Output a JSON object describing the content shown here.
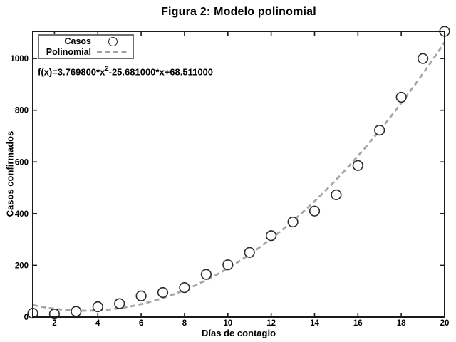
{
  "title": "Figura 2: Modelo polinomial",
  "annotation": {
    "prefix": "f(x)=3.769800*x",
    "exponent": "2",
    "suffix": "-25.681000*x+68.511000"
  },
  "legend": {
    "position": "top-left",
    "items": [
      {
        "label": "Casos",
        "marker": "circle"
      },
      {
        "label": "Polinomial",
        "marker": "dashed-line"
      }
    ]
  },
  "colors": {
    "background": "#ffffff",
    "axis": "#1a1a1a",
    "points": "#2b2b2b",
    "point_fill": "#ffffff",
    "fit_line": "#a5a5a5",
    "text": "#000000",
    "legend_border": "#6f6f6f"
  },
  "chart_data": {
    "type": "scatter",
    "title": "Figura 2: Modelo polinomial",
    "xlabel": "Días de contagio",
    "ylabel": "Casos confirmados",
    "xlim": [
      1,
      20
    ],
    "ylim": [
      0,
      1105
    ],
    "x_ticks": [
      2,
      4,
      6,
      8,
      10,
      12,
      14,
      16,
      18,
      20
    ],
    "y_ticks": [
      0,
      200,
      400,
      600,
      800,
      1000
    ],
    "grid": false,
    "legend_position": "top-left",
    "series": [
      {
        "name": "Casos",
        "type": "scatter",
        "marker": "open-circle",
        "x": [
          1,
          2,
          3,
          4,
          5,
          6,
          7,
          8,
          9,
          10,
          11,
          12,
          13,
          14,
          15,
          16,
          17,
          18,
          19,
          20
        ],
        "y": [
          15,
          12,
          22,
          40,
          52,
          82,
          95,
          114,
          165,
          202,
          250,
          315,
          368,
          410,
          473,
          586,
          723,
          850,
          1000,
          1105
        ]
      },
      {
        "name": "Polinomial",
        "type": "line",
        "style": "dashed",
        "fit": {
          "a": 3.7698,
          "b": -25.681,
          "c": 68.511
        },
        "equation_text": "f(x)=3.769800*x^2-25.681000*x+68.511000"
      }
    ]
  }
}
